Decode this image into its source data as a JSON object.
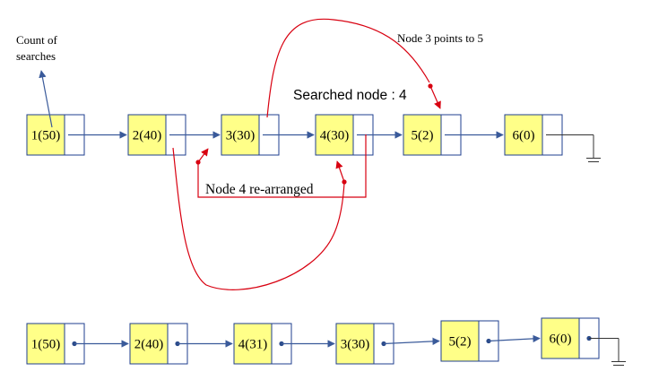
{
  "colors": {
    "node_fill": "#ffff88",
    "pointer_fill": "#ffffff",
    "border": "#1f3f8f",
    "arrow": "#3a5a9a",
    "annotation": "#d80010"
  },
  "before_list": [
    "1(50)",
    "2(40)",
    "3(30)",
    "4(30)",
    "5(2)",
    "6(0)"
  ],
  "after_list": [
    "1(50)",
    "2(40)",
    "4(31)",
    "3(30)",
    "5(2)",
    "6(0)"
  ],
  "annotations": {
    "count_line1": "Count of",
    "count_line2": "searches",
    "searched_node": "Searched node : 4",
    "node3_points": "Node 3 points to 5",
    "node4_rearranged": "Node 4 re-arranged"
  },
  "icons": [
    "ground-icon"
  ]
}
